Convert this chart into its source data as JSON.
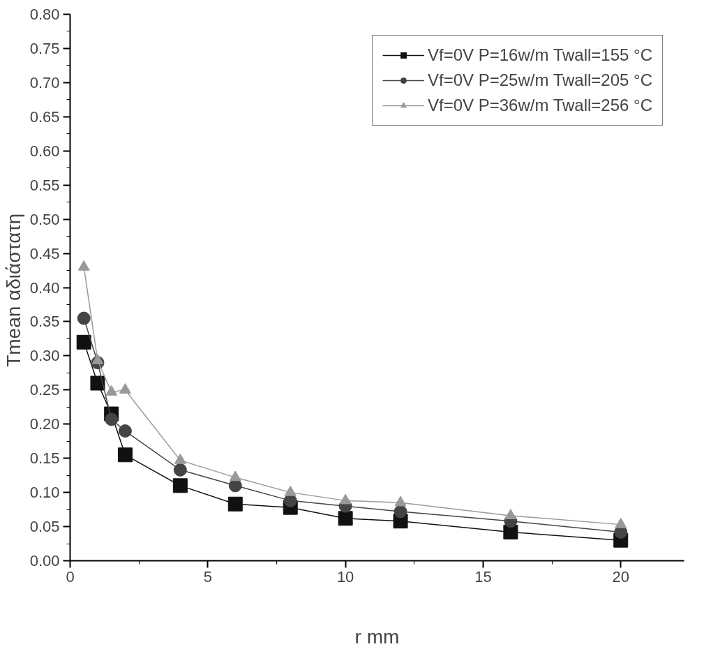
{
  "chart_data": {
    "type": "line",
    "xlabel": "r mm",
    "ylabel": "Tmean  αδιάστατη",
    "x": [
      0.5,
      1,
      1.5,
      2,
      4,
      6,
      8,
      10,
      12,
      16,
      20
    ],
    "series": [
      {
        "name": "Vf=0V P=16w/m Twall=155 °C",
        "color": "#111111",
        "marker": "square",
        "values": [
          0.32,
          0.26,
          0.215,
          0.155,
          0.11,
          0.083,
          0.078,
          0.062,
          0.058,
          0.042,
          0.03
        ]
      },
      {
        "name": "Vf=0V P=25w/m Twall=205 °C",
        "color": "#444444",
        "marker": "circle",
        "values": [
          0.355,
          0.29,
          0.207,
          0.19,
          0.133,
          0.11,
          0.088,
          0.08,
          0.072,
          0.058,
          0.042
        ]
      },
      {
        "name": "Vf=0V P=36w/m Twall=256 °C",
        "color": "#999999",
        "marker": "triangle",
        "values": [
          0.43,
          0.293,
          0.247,
          0.25,
          0.147,
          0.122,
          0.1,
          0.088,
          0.085,
          0.066,
          0.053
        ]
      }
    ],
    "xlim": [
      0,
      22.3
    ],
    "xticks": [
      0,
      5,
      10,
      15,
      20
    ],
    "ylim": [
      0,
      0.8
    ],
    "yticks": [
      {
        "value": 0,
        "label": "0.00"
      },
      {
        "value": 0.05,
        "label": "0.05"
      },
      {
        "value": 0.1,
        "label": "0.10"
      },
      {
        "value": 0.15,
        "label": "0.15"
      },
      {
        "value": 0.2,
        "label": "0.20"
      },
      {
        "value": 0.25,
        "label": "0.25"
      },
      {
        "value": 0.3,
        "label": "0.30"
      },
      {
        "value": 0.35,
        "label": "0.35"
      },
      {
        "value": 0.4,
        "label": "0.40"
      },
      {
        "value": 0.45,
        "label": "0.45"
      },
      {
        "value": 0.5,
        "label": "0.50"
      },
      {
        "value": 0.55,
        "label": "0.55"
      },
      {
        "value": 0.6,
        "label": "0.60"
      },
      {
        "value": 0.65,
        "label": "0.65"
      },
      {
        "value": 0.7,
        "label": "0.70"
      },
      {
        "value": 0.75,
        "label": "0.75"
      },
      {
        "value": 0.8,
        "label": "0.80"
      }
    ],
    "grid": false,
    "legend": "top right",
    "line_style": "solid"
  }
}
